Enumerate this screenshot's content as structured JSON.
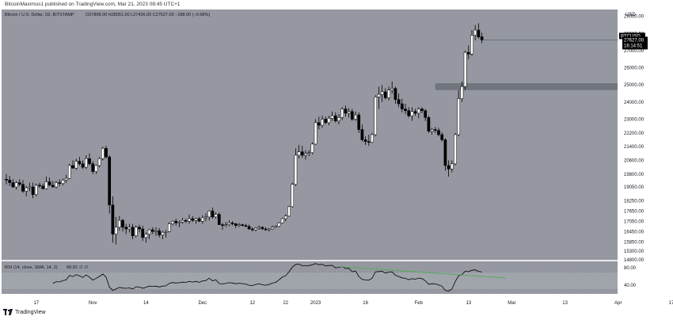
{
  "header": {
    "publisher_line": "BitcoinMaximus1 published on TradingView.com, Mar 21, 2023 08:45 UTC+1"
  },
  "footer": {
    "brand": "TradingView"
  },
  "colors": {
    "pane_bg": "#9598a1",
    "candle_up": "#ffffff",
    "candle_down": "#000000",
    "rsi_line": "#000000",
    "rsi_ma": "#4caf50",
    "zone": "#6b6e78",
    "price_tag": "#000000"
  },
  "chart_data": {
    "type": "candlestick",
    "title": "Bitcoin / U.S. Dollar, 1D, BITSTAMP",
    "ohlc_label": "O27808.00 H28051.00 L27436.00 C27627.00 −188.00 (−0.68%)",
    "symbol_tag": "BTCUSD",
    "last_price": "27627.00",
    "countdown": "16:14:51",
    "price_axis_label": "USD",
    "price_ticks": [
      "29000.00",
      "28000.00",
      "27000.00",
      "26000.00",
      "25000.00",
      "24000.00",
      "23000.00",
      "22200.00",
      "21400.00",
      "20600.00",
      "19800.00",
      "19050.00",
      "18250.00",
      "17650.00",
      "17050.00",
      "16450.00",
      "15850.00",
      "15300.00",
      "14800.00"
    ],
    "ylim": [
      14800,
      29400
    ],
    "x_ticks": [
      "17",
      "Nov",
      "14",
      "Dec",
      "12",
      "22",
      "2023",
      "16",
      "Feb",
      "13",
      "Mar",
      "13",
      "Apr",
      "17"
    ],
    "x_tick_index": [
      9,
      26,
      42,
      59,
      74,
      84,
      93,
      108,
      124,
      139,
      152,
      168,
      184,
      200
    ],
    "resistance_zone": [
      24700,
      25100
    ],
    "ohlc": [
      [
        19500,
        19800,
        19200,
        19450
      ],
      [
        19450,
        19700,
        19100,
        19300
      ],
      [
        19300,
        19500,
        19000,
        19050
      ],
      [
        19050,
        19400,
        18900,
        19300
      ],
      [
        19300,
        19500,
        19100,
        19200
      ],
      [
        19200,
        19450,
        18700,
        18800
      ],
      [
        18800,
        19100,
        18500,
        19000
      ],
      [
        19000,
        19300,
        18800,
        19050
      ],
      [
        19050,
        19300,
        18400,
        18600
      ],
      [
        18600,
        19250,
        18500,
        19150
      ],
      [
        19150,
        19300,
        19000,
        19100
      ],
      [
        19100,
        19250,
        18900,
        18950
      ],
      [
        18950,
        19650,
        18900,
        19350
      ],
      [
        19350,
        19600,
        19100,
        19150
      ],
      [
        19150,
        19400,
        19000,
        19050
      ],
      [
        19050,
        19400,
        18950,
        19300
      ],
      [
        19300,
        19500,
        19100,
        19250
      ],
      [
        19250,
        19550,
        19150,
        19450
      ],
      [
        19450,
        19750,
        19300,
        19550
      ],
      [
        19550,
        20400,
        19500,
        20300
      ],
      [
        20300,
        20600,
        20100,
        20150
      ],
      [
        20150,
        20700,
        20050,
        20550
      ],
      [
        20550,
        20800,
        20300,
        20400
      ],
      [
        20400,
        20600,
        20100,
        20200
      ],
      [
        20200,
        20900,
        20100,
        20700
      ],
      [
        20700,
        21000,
        20300,
        20400
      ],
      [
        20400,
        20550,
        19800,
        19950
      ],
      [
        19950,
        20350,
        19800,
        20300
      ],
      [
        20300,
        20800,
        20200,
        20700
      ],
      [
        20700,
        21400,
        20600,
        21300
      ],
      [
        21300,
        21450,
        20700,
        20800
      ],
      [
        20800,
        20900,
        17500,
        18000
      ],
      [
        18000,
        18500,
        15800,
        16300
      ],
      [
        16300,
        17300,
        15700,
        16700
      ],
      [
        16700,
        17350,
        16500,
        17100
      ],
      [
        17100,
        17200,
        16450,
        16700
      ],
      [
        16700,
        16900,
        16300,
        16600
      ],
      [
        16600,
        16900,
        16400,
        16700
      ],
      [
        16700,
        16900,
        16000,
        16200
      ],
      [
        16200,
        16800,
        16100,
        16700
      ],
      [
        16700,
        16850,
        16400,
        16600
      ],
      [
        16600,
        16800,
        15900,
        16100
      ],
      [
        16100,
        16400,
        15800,
        16300
      ],
      [
        16300,
        16600,
        16000,
        16550
      ],
      [
        16550,
        16700,
        16300,
        16450
      ],
      [
        16450,
        16700,
        16200,
        16500
      ],
      [
        16500,
        16650,
        16100,
        16250
      ],
      [
        16250,
        16500,
        16000,
        16400
      ],
      [
        16400,
        16550,
        16100,
        16450
      ],
      [
        16450,
        17000,
        16400,
        16900
      ],
      [
        16900,
        17100,
        16800,
        17050
      ],
      [
        17050,
        17200,
        16800,
        16950
      ],
      [
        16950,
        17100,
        16700,
        17000
      ],
      [
        17000,
        17250,
        16900,
        17100
      ],
      [
        17100,
        17200,
        16950,
        17050
      ],
      [
        17050,
        17450,
        16900,
        17200
      ],
      [
        17200,
        17350,
        17000,
        17100
      ],
      [
        17100,
        17250,
        16900,
        17200
      ],
      [
        17200,
        17300,
        17000,
        17050
      ],
      [
        17050,
        17400,
        16900,
        17250
      ],
      [
        17250,
        17500,
        17050,
        17300
      ],
      [
        17300,
        17700,
        17100,
        17650
      ],
      [
        17650,
        17850,
        17200,
        17300
      ],
      [
        17300,
        17550,
        17200,
        17450
      ],
      [
        17450,
        17550,
        16900,
        16850
      ],
      [
        16850,
        16950,
        16550,
        16800
      ],
      [
        16800,
        17000,
        16700,
        16850
      ],
      [
        16850,
        17100,
        16750,
        16950
      ],
      [
        16950,
        17050,
        16800,
        16900
      ],
      [
        16900,
        16950,
        16650,
        16800
      ],
      [
        16800,
        16950,
        16700,
        16850
      ],
      [
        16850,
        16900,
        16750,
        16800
      ],
      [
        16800,
        16900,
        16700,
        16750
      ],
      [
        16750,
        16850,
        16550,
        16600
      ],
      [
        16600,
        16700,
        16450,
        16550
      ],
      [
        16550,
        16700,
        16450,
        16650
      ],
      [
        16650,
        16800,
        16550,
        16700
      ],
      [
        16700,
        16750,
        16550,
        16600
      ],
      [
        16600,
        16700,
        16500,
        16550
      ],
      [
        16550,
        16650,
        16450,
        16600
      ],
      [
        16600,
        16800,
        16550,
        16700
      ],
      [
        16700,
        16800,
        16650,
        16750
      ],
      [
        16750,
        17000,
        16700,
        16950
      ],
      [
        16950,
        17250,
        16900,
        17200
      ],
      [
        17200,
        17450,
        17050,
        17350
      ],
      [
        17350,
        17950,
        17300,
        17900
      ],
      [
        17900,
        19300,
        17850,
        19200
      ],
      [
        19200,
        21300,
        19100,
        20900
      ],
      [
        20900,
        21500,
        20700,
        21100
      ],
      [
        21100,
        21450,
        20750,
        20900
      ],
      [
        20900,
        21200,
        20650,
        21000
      ],
      [
        21000,
        21200,
        20850,
        21050
      ],
      [
        21050,
        21650,
        20950,
        21550
      ],
      [
        21550,
        23000,
        21500,
        22800
      ],
      [
        22800,
        23150,
        22400,
        22650
      ],
      [
        22650,
        23200,
        22500,
        23000
      ],
      [
        23000,
        23150,
        22700,
        22800
      ],
      [
        22800,
        23200,
        22650,
        23050
      ],
      [
        23050,
        23450,
        22900,
        23200
      ],
      [
        23200,
        23400,
        22800,
        22900
      ],
      [
        22900,
        23300,
        22700,
        23100
      ],
      [
        23100,
        23700,
        22950,
        23600
      ],
      [
        23600,
        23800,
        23150,
        23350
      ],
      [
        23350,
        23650,
        23100,
        23450
      ],
      [
        23450,
        23600,
        22900,
        23000
      ],
      [
        23000,
        23450,
        22900,
        23250
      ],
      [
        23250,
        23400,
        22200,
        22400
      ],
      [
        22400,
        22700,
        21700,
        21800
      ],
      [
        21800,
        22000,
        21500,
        21700
      ],
      [
        21700,
        22100,
        21450,
        21650
      ],
      [
        21650,
        22200,
        21600,
        22100
      ],
      [
        22100,
        24400,
        22000,
        24300
      ],
      [
        24300,
        24900,
        23600,
        24450
      ],
      [
        24450,
        25000,
        24000,
        24600
      ],
      [
        24600,
        24800,
        24150,
        24250
      ],
      [
        24250,
        24900,
        24100,
        24700
      ],
      [
        24700,
        25200,
        24500,
        24800
      ],
      [
        24800,
        24900,
        23900,
        24150
      ],
      [
        24150,
        24500,
        23700,
        23900
      ],
      [
        23900,
        24200,
        23400,
        23600
      ],
      [
        23600,
        23900,
        23300,
        23500
      ],
      [
        23500,
        23700,
        23100,
        23200
      ],
      [
        23200,
        23700,
        22900,
        23450
      ],
      [
        23450,
        23600,
        23200,
        23350
      ],
      [
        23350,
        23700,
        23050,
        23600
      ],
      [
        23600,
        23700,
        23350,
        23500
      ],
      [
        23500,
        23600,
        22900,
        23100
      ],
      [
        23100,
        23200,
        22200,
        22300
      ],
      [
        22300,
        22500,
        22100,
        22400
      ],
      [
        22400,
        22550,
        22200,
        22350
      ],
      [
        22350,
        22500,
        22000,
        22100
      ],
      [
        22100,
        22250,
        21700,
        21800
      ],
      [
        21800,
        21900,
        20000,
        20300
      ],
      [
        20300,
        20600,
        19650,
        20100
      ],
      [
        20100,
        20600,
        19900,
        20400
      ],
      [
        20400,
        22200,
        20300,
        22100
      ],
      [
        22100,
        24700,
        22000,
        24200
      ],
      [
        24200,
        25200,
        24000,
        24900
      ],
      [
        24900,
        27000,
        24700,
        26900
      ],
      [
        26900,
        27300,
        26500,
        26800
      ],
      [
        26800,
        28200,
        26700,
        27900
      ],
      [
        27900,
        28500,
        27600,
        28200
      ],
      [
        28200,
        28600,
        27700,
        27800
      ],
      [
        27808,
        28051,
        27436,
        27627
      ]
    ],
    "rsi": {
      "label": "RSI (14, close, SMA, 14, 2)",
      "value_label": "68.92",
      "extra": "∅ ∅",
      "ticks": [
        "80.00",
        "40.00"
      ],
      "ylim": [
        20,
        95
      ]
    }
  }
}
